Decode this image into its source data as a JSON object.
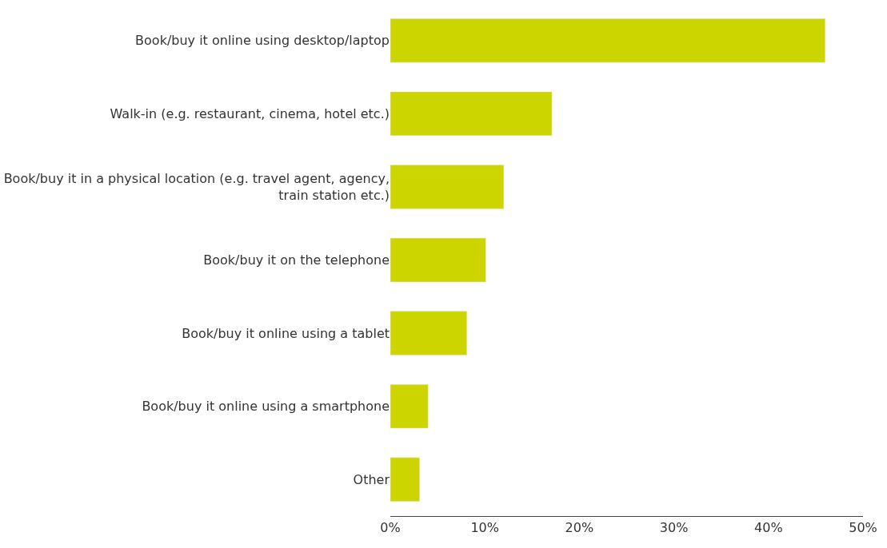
{
  "chart_data": {
    "type": "bar",
    "orientation": "horizontal",
    "categories": [
      "Book/buy it online using desktop/laptop",
      "Walk-in (e.g. restaurant, cinema, hotel etc.)",
      "Book/buy it in a physical location (e.g. travel agent, agency, train station etc.)",
      "Book/buy it on the telephone",
      "Book/buy it online using a tablet",
      "Book/buy it online using a smartphone",
      "Other"
    ],
    "values": [
      46,
      17.1,
      12,
      10.1,
      8.1,
      4,
      3.1
    ],
    "color": "#cdd500",
    "xlim": [
      0,
      50
    ],
    "xticks": [
      {
        "value": 0,
        "label": "0%"
      },
      {
        "value": 10,
        "label": "10%"
      },
      {
        "value": 20,
        "label": "20%"
      },
      {
        "value": 30,
        "label": "30%"
      },
      {
        "value": 40,
        "label": "40%"
      },
      {
        "value": 50,
        "label": "50%"
      }
    ],
    "tick_labels": "xy"
  }
}
